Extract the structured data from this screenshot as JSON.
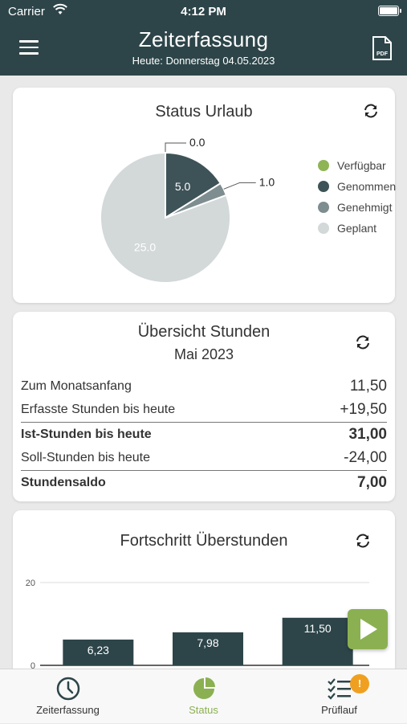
{
  "status_bar": {
    "carrier": "Carrier",
    "time": "4:12 PM"
  },
  "header": {
    "title": "Zeiterfassung",
    "subtitle": "Heute: Donnerstag 04.05.2023",
    "pdf_label": "PDF"
  },
  "vacation": {
    "title": "Status Urlaub",
    "legend": [
      {
        "label": "Verfügbar",
        "color": "#8fb456"
      },
      {
        "label": "Genommen",
        "color": "#3e5358"
      },
      {
        "label": "Genehmigt",
        "color": "#7d8d90"
      },
      {
        "label": "Geplant",
        "color": "#d3d8d9"
      }
    ]
  },
  "hours": {
    "title": "Übersicht Stunden",
    "month": "Mai 2023",
    "rows": [
      {
        "label": "Zum Monatsanfang",
        "value": "11,50"
      },
      {
        "label": "Erfasste Stunden bis heute",
        "value": "+19,50"
      },
      {
        "label": "Ist-Stunden bis heute",
        "value": "31,00"
      },
      {
        "label": "Soll-Stunden bis heute",
        "value": "-24,00"
      },
      {
        "label": "Stundensaldo",
        "value": "7,00"
      }
    ]
  },
  "overtime": {
    "title": "Fortschritt Überstunden"
  },
  "chart_data": [
    {
      "type": "pie",
      "title": "Status Urlaub",
      "slices": [
        {
          "name": "Verfügbar",
          "value": 0.0,
          "label": "0.0",
          "color": "#8fb456"
        },
        {
          "name": "Genommen",
          "value": 5.0,
          "label": "5.0",
          "color": "#3e5358"
        },
        {
          "name": "Genehmigt",
          "value": 1.0,
          "label": "1.0",
          "color": "#7d8d90"
        },
        {
          "name": "Geplant",
          "value": 25.0,
          "label": "25.0",
          "color": "#d3d8d9"
        }
      ],
      "legend": "right"
    },
    {
      "type": "bar",
      "title": "Fortschritt Überstunden",
      "values": [
        6.23,
        7.98,
        11.5
      ],
      "labels": [
        "6,23",
        "7,98",
        "11,50"
      ],
      "ylim": [
        0,
        20
      ],
      "yticks": [
        "0",
        "20"
      ],
      "grid": true,
      "color": "#2d4549"
    }
  ],
  "tabs": [
    {
      "label": "Zeiterfassung",
      "color": "#333333"
    },
    {
      "label": "Status",
      "color": "#8bb052"
    },
    {
      "label": "Prüflauf",
      "color": "#333333",
      "badge": "!"
    }
  ]
}
